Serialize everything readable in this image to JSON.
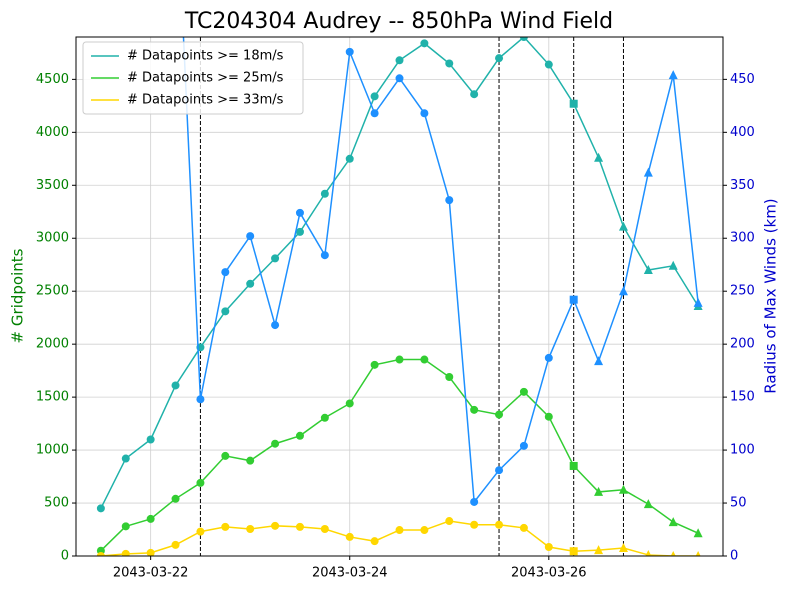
{
  "chart_data": {
    "type": "line",
    "title": "TC204304 Audrey -- 850hPa Wind Field",
    "ylabel": "# Gridpoints",
    "y2label": "Radius of Max Winds (km)",
    "x": [
      "2043-03-21T12:00",
      "2043-03-21T18:00",
      "2043-03-22T00:00",
      "2043-03-22T06:00",
      "2043-03-22T12:00",
      "2043-03-22T18:00",
      "2043-03-23T00:00",
      "2043-03-23T06:00",
      "2043-03-23T12:00",
      "2043-03-23T18:00",
      "2043-03-24T00:00",
      "2043-03-24T06:00",
      "2043-03-24T12:00",
      "2043-03-24T18:00",
      "2043-03-25T00:00",
      "2043-03-25T06:00",
      "2043-03-25T12:00",
      "2043-03-25T18:00",
      "2043-03-26T00:00",
      "2043-03-26T06:00",
      "2043-03-26T12:00",
      "2043-03-26T18:00",
      "2043-03-27T00:00",
      "2043-03-27T06:00",
      "2043-03-27T12:00"
    ],
    "markers": [
      "circle",
      "circle",
      "circle",
      "circle",
      "circle",
      "circle",
      "circle",
      "circle",
      "circle",
      "circle",
      "circle",
      "circle",
      "circle",
      "circle",
      "circle",
      "circle",
      "circle",
      "circle",
      "circle",
      "square",
      "triangle",
      "triangle",
      "triangle",
      "triangle",
      "triangle"
    ],
    "series": [
      {
        "name": "# Datapoints >= 18m/s",
        "color": "#20b2aa",
        "values": [
          450,
          920,
          1100,
          1610,
          1970,
          2310,
          2570,
          2810,
          3060,
          3420,
          3750,
          4340,
          4680,
          4840,
          4650,
          4360,
          4700,
          4900,
          4640,
          4270,
          3760,
          3110,
          2700,
          2740,
          2360
        ]
      },
      {
        "name": "# Datapoints >= 25m/s",
        "color": "#32cd32",
        "values": [
          50,
          280,
          350,
          540,
          690,
          945,
          900,
          1060,
          1135,
          1305,
          1440,
          1805,
          1855,
          1855,
          1690,
          1380,
          1335,
          1550,
          1315,
          850,
          605,
          625,
          490,
          320,
          215
        ]
      },
      {
        "name": "# Datapoints >= 33m/s",
        "color": "#ffd700",
        "values": [
          0,
          20,
          30,
          105,
          230,
          275,
          255,
          285,
          275,
          255,
          180,
          140,
          245,
          245,
          330,
          295,
          295,
          265,
          85,
          45,
          55,
          75,
          10,
          0,
          0
        ]
      },
      {
        "color": "#1e90ff",
        "axis": "y2",
        "values": [
          null,
          null,
          null,
          650,
          148,
          268,
          302,
          218,
          324,
          284,
          476,
          418,
          451,
          418,
          336,
          51,
          81,
          104,
          187,
          242,
          184,
          250,
          362,
          454,
          239
        ]
      }
    ],
    "xlim": [
      "2043-03-21T06:00",
      "2043-03-27T18:00"
    ],
    "xticks": [
      {
        "value": "2043-03-22T00:00",
        "label": "2043-03-22"
      },
      {
        "value": "2043-03-24T00:00",
        "label": "2043-03-24"
      },
      {
        "value": "2043-03-26T00:00",
        "label": "2043-03-26"
      }
    ],
    "ylim": [
      0,
      4900
    ],
    "yticks": [
      0,
      500,
      1000,
      1500,
      2000,
      2500,
      3000,
      3500,
      4000,
      4500
    ],
    "y2lim": [
      0,
      490
    ],
    "y2ticks": [
      0,
      50,
      100,
      150,
      200,
      250,
      300,
      350,
      400,
      450
    ],
    "vlines": [
      "2043-03-22T12:00",
      "2043-03-25T12:00",
      "2043-03-26T06:00",
      "2043-03-26T18:00"
    ],
    "grid": true,
    "legend": "upper left",
    "ylabel_color": "#008000",
    "y2label_color": "#0000cd"
  }
}
